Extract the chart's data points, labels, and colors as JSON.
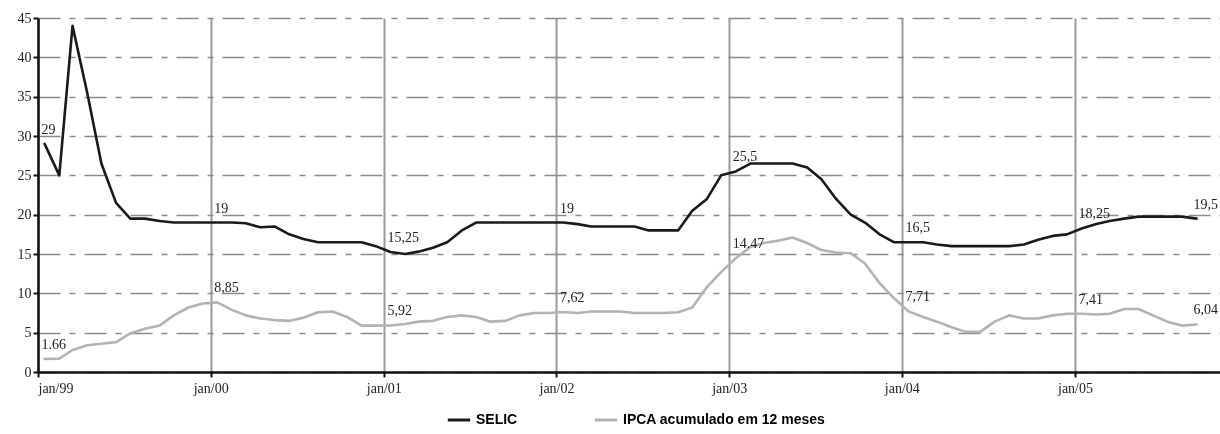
{
  "chart_data": {
    "type": "line",
    "x": [
      "1999-01-15",
      "1999-02-15",
      "1999-03-15",
      "1999-04-15",
      "1999-05-15",
      "1999-06-15",
      "1999-07-15",
      "1999-08-15",
      "1999-09-15",
      "1999-10-15",
      "1999-11-15",
      "1999-12-15",
      "2000-01-15",
      "2000-02-15",
      "2000-03-15",
      "2000-04-15",
      "2000-05-15",
      "2000-06-15",
      "2000-07-15",
      "2000-08-15",
      "2000-09-15",
      "2000-10-15",
      "2000-11-15",
      "2000-12-15",
      "2001-01-15",
      "2001-02-15",
      "2001-03-15",
      "2001-04-15",
      "2001-05-15",
      "2001-06-15",
      "2001-07-15",
      "2001-08-15",
      "2001-09-15",
      "2001-10-15",
      "2001-11-15",
      "2001-12-15",
      "2002-01-15",
      "2002-02-15",
      "2002-03-15",
      "2002-04-15",
      "2002-05-15",
      "2002-06-15",
      "2002-07-15",
      "2002-08-15",
      "2002-09-15",
      "2002-10-15",
      "2002-11-15",
      "2002-12-15",
      "2003-01-15",
      "2003-02-15",
      "2003-03-15",
      "2003-04-15",
      "2003-05-15",
      "2003-06-15",
      "2003-07-15",
      "2003-08-15",
      "2003-09-15",
      "2003-10-15",
      "2003-11-15",
      "2003-12-15",
      "2004-01-15",
      "2004-02-15",
      "2004-03-15",
      "2004-04-15",
      "2004-05-15",
      "2004-06-15",
      "2004-07-15",
      "2004-08-15",
      "2004-09-15",
      "2004-10-15",
      "2004-11-15",
      "2004-12-15",
      "2005-01-15",
      "2005-02-15",
      "2005-03-15",
      "2005-04-15",
      "2005-05-15",
      "2005-06-15",
      "2005-07-15",
      "2005-08-15",
      "2005-09-15"
    ],
    "series": [
      {
        "name": "SELIC",
        "color": "#1a1a1a",
        "values": [
          29,
          25,
          44,
          35.5,
          26.5,
          21.5,
          19.5,
          19.5,
          19.2,
          19,
          19,
          19,
          19,
          19,
          18.9,
          18.4,
          18.5,
          17.5,
          16.9,
          16.5,
          16.5,
          16.5,
          16.5,
          16,
          15.25,
          15,
          15.3,
          15.8,
          16.5,
          18,
          19,
          19,
          19,
          19,
          19,
          19,
          19,
          18.8,
          18.5,
          18.5,
          18.5,
          18.5,
          18,
          18,
          18,
          20.5,
          22,
          25,
          25.5,
          26.5,
          26.5,
          26.5,
          26.5,
          26,
          24.5,
          22,
          20,
          19,
          17.5,
          16.5,
          16.5,
          16.5,
          16.2,
          16,
          16,
          16,
          16,
          16,
          16.2,
          16.8,
          17.3,
          17.5,
          18.25,
          18.8,
          19.2,
          19.5,
          19.75,
          19.75,
          19.75,
          19.75,
          19.5
        ]
      },
      {
        "name": "IPCA acumulado em 12 meses",
        "color": "#b3b3b3",
        "values": [
          1.66,
          1.7,
          2.8,
          3.4,
          3.6,
          3.8,
          4.9,
          5.5,
          5.9,
          7.2,
          8.2,
          8.7,
          8.85,
          7.9,
          7.2,
          6.8,
          6.6,
          6.5,
          6.9,
          7.6,
          7.7,
          7,
          5.9,
          5.9,
          5.92,
          6.1,
          6.4,
          6.5,
          7,
          7.2,
          7,
          6.4,
          6.5,
          7.2,
          7.5,
          7.5,
          7.62,
          7.5,
          7.7,
          7.7,
          7.7,
          7.5,
          7.5,
          7.5,
          7.6,
          8.2,
          10.8,
          12.7,
          14.47,
          15.9,
          16.4,
          16.7,
          17.1,
          16.4,
          15.5,
          15.2,
          15.1,
          13.8,
          11.3,
          9.4,
          7.71,
          7,
          6.4,
          5.7,
          5.1,
          5.1,
          6.4,
          7.2,
          6.8,
          6.8,
          7.2,
          7.4,
          7.41,
          7.3,
          7.4,
          8,
          8,
          7.2,
          6.4,
          5.9,
          6.04
        ]
      }
    ],
    "xlim": [
      "1999-01-01",
      "2005-12-01"
    ],
    "xticks": [
      {
        "value": "1999-01-01",
        "label": "jan/99"
      },
      {
        "value": "2000-01-01",
        "label": "jan/00"
      },
      {
        "value": "2001-01-01",
        "label": "jan/01"
      },
      {
        "value": "2002-01-01",
        "label": "jan/02"
      },
      {
        "value": "2003-01-01",
        "label": "jan/03"
      },
      {
        "value": "2004-01-01",
        "label": "jan/04"
      },
      {
        "value": "2005-01-01",
        "label": "jan/05"
      }
    ],
    "ylim": [
      0,
      45
    ],
    "yticks": [
      0,
      5,
      10,
      15,
      20,
      25,
      30,
      35,
      40,
      45
    ],
    "annotations": [
      {
        "text": "29",
        "x": "1999-01-15",
        "y": 29
      },
      {
        "text": "19",
        "x": "2000-01-15",
        "y": 19
      },
      {
        "text": "15,25",
        "x": "2001-01-15",
        "y": 15.25
      },
      {
        "text": "19",
        "x": "2002-01-15",
        "y": 19
      },
      {
        "text": "25,5",
        "x": "2003-01-15",
        "y": 25.5
      },
      {
        "text": "16,5",
        "x": "2004-01-15",
        "y": 16.5
      },
      {
        "text": "18,25",
        "x": "2005-01-15",
        "y": 18.25
      },
      {
        "text": "19,5",
        "x": "2005-09-15",
        "y": 19.5
      },
      {
        "text": "1.66",
        "x": "1999-01-15",
        "y": 1.66
      },
      {
        "text": "8,85",
        "x": "2000-01-15",
        "y": 8.85
      },
      {
        "text": "5,92",
        "x": "2001-01-15",
        "y": 5.92
      },
      {
        "text": "7,62",
        "x": "2002-01-15",
        "y": 7.62
      },
      {
        "text": "14.47",
        "x": "2003-01-15",
        "y": 14.47
      },
      {
        "text": "7,71",
        "x": "2004-01-15",
        "y": 7.71
      },
      {
        "text": "7,41",
        "x": "2005-01-15",
        "y": 7.41
      },
      {
        "text": "6,04",
        "x": "2005-09-15",
        "y": 6.04
      }
    ],
    "grid": true,
    "legend": "bottom"
  }
}
